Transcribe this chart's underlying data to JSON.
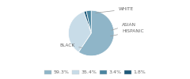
{
  "labels": [
    "BLACK",
    "WHITE",
    "HISPANIC",
    "ASIAN"
  ],
  "values": [
    59.3,
    35.4,
    1.8,
    3.4
  ],
  "colors": [
    "#8fb5c8",
    "#c8dce8",
    "#1e5a7a",
    "#4a85a0"
  ],
  "legend_labels": [
    "59.3%",
    "35.4%",
    "3.4%",
    "1.8%"
  ],
  "legend_colors": [
    "#8fb5c8",
    "#c8dce8",
    "#4a85a0",
    "#1e5a7a"
  ],
  "startangle": 90,
  "background": "#ffffff"
}
